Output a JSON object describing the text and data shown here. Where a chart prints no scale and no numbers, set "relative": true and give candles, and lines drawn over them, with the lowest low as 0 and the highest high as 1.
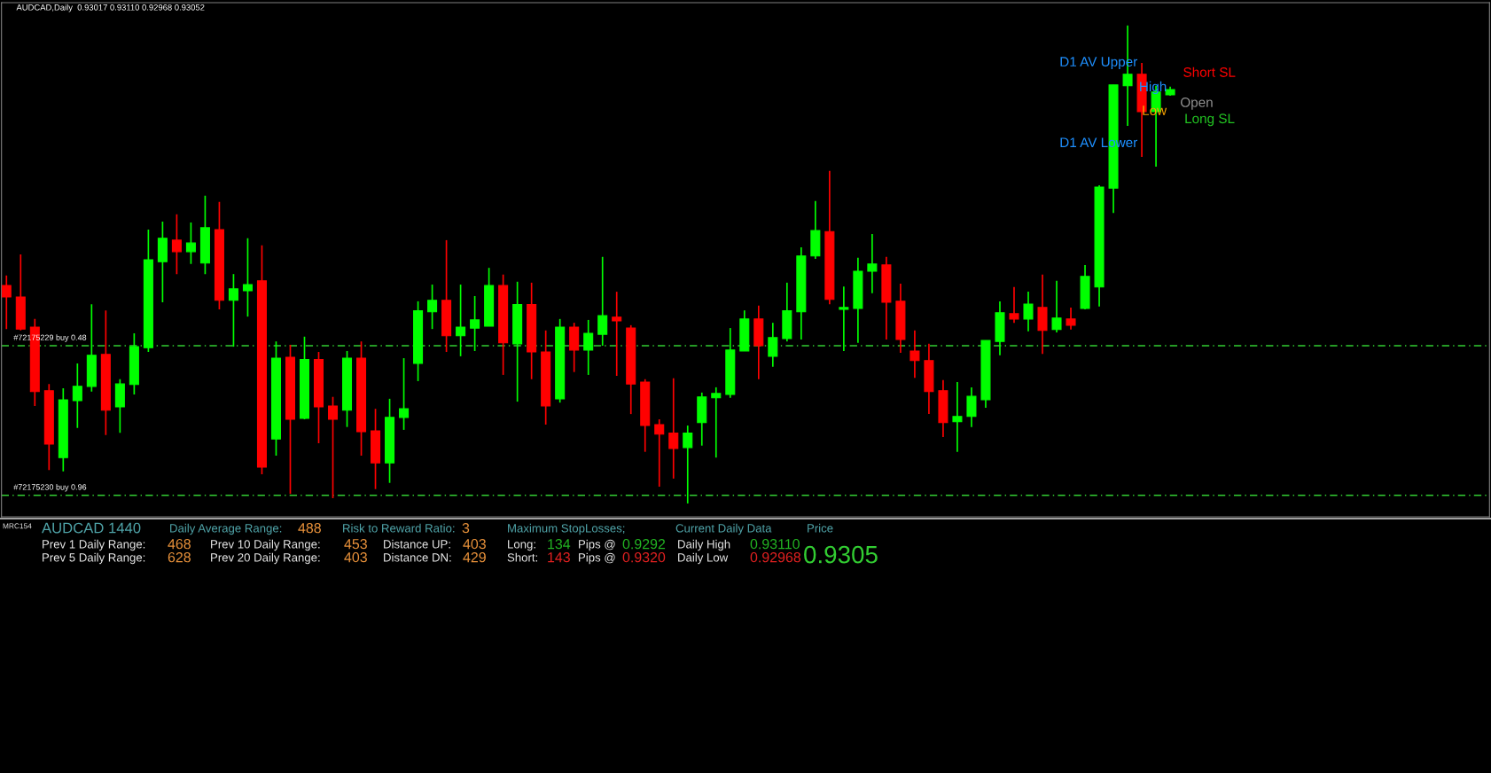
{
  "chart_data": {
    "type": "candlestick",
    "title": "AUDCAD,Daily  0.93017 0.93110 0.92968 0.93052",
    "relative": true,
    "categories": [
      null,
      null,
      null,
      null,
      null,
      null,
      null,
      null,
      null,
      null,
      null,
      null,
      null,
      null,
      null,
      null,
      null,
      null,
      null,
      null,
      null,
      null,
      null,
      null,
      null,
      null,
      null,
      null,
      null,
      null,
      null,
      null,
      null,
      null,
      null,
      null,
      null,
      null,
      null,
      null,
      null,
      null,
      null,
      null,
      null,
      null,
      null,
      null,
      null,
      null,
      null,
      null,
      null,
      null,
      null,
      null,
      null,
      null,
      null,
      null,
      null,
      null,
      null,
      null,
      null,
      null,
      null,
      null,
      null,
      null,
      null,
      null,
      null,
      null,
      null,
      null,
      null,
      null,
      null,
      null,
      null,
      null,
      null
    ],
    "ohlc": [
      [
        0.456,
        0.477,
        0.365,
        0.432
      ],
      [
        0.432,
        0.521,
        0.362,
        0.365
      ],
      [
        0.369,
        0.386,
        0.204,
        0.234
      ],
      [
        0.236,
        0.25,
        0.07,
        0.124
      ],
      [
        0.096,
        0.241,
        0.067,
        0.217
      ],
      [
        0.215,
        0.293,
        0.158,
        0.245
      ],
      [
        0.245,
        0.417,
        0.234,
        0.31
      ],
      [
        0.312,
        0.404,
        0.143,
        0.195
      ],
      [
        0.202,
        0.26,
        0.148,
        0.25
      ],
      [
        0.249,
        0.356,
        0.228,
        0.328
      ],
      [
        0.326,
        0.573,
        0.317,
        0.51
      ],
      [
        0.506,
        0.59,
        0.421,
        0.555
      ],
      [
        0.551,
        0.605,
        0.48,
        0.527
      ],
      [
        0.527,
        0.588,
        0.501,
        0.545
      ],
      [
        0.503,
        0.644,
        0.48,
        0.577
      ],
      [
        0.573,
        0.631,
        0.406,
        0.425
      ],
      [
        0.425,
        0.48,
        0.328,
        0.449
      ],
      [
        0.445,
        0.555,
        0.391,
        0.458
      ],
      [
        0.466,
        0.54,
        0.061,
        0.076
      ],
      [
        0.135,
        0.339,
        0.1,
        0.304
      ],
      [
        0.306,
        0.332,
        0.02,
        0.176
      ],
      [
        0.178,
        0.349,
        0.176,
        0.301
      ],
      [
        0.301,
        0.317,
        0.126,
        0.202
      ],
      [
        0.204,
        0.223,
        0.011,
        0.176
      ],
      [
        0.195,
        0.319,
        0.16,
        0.304
      ],
      [
        0.304,
        0.339,
        0.1,
        0.15
      ],
      [
        0.152,
        0.198,
        0.03,
        0.085
      ],
      [
        0.085,
        0.219,
        0.043,
        0.18
      ],
      [
        0.18,
        0.304,
        0.154,
        0.198
      ],
      [
        0.293,
        0.423,
        0.256,
        0.403
      ],
      [
        0.401,
        0.458,
        0.365,
        0.425
      ],
      [
        0.425,
        0.551,
        0.317,
        0.351
      ],
      [
        0.351,
        0.458,
        0.308,
        0.369
      ],
      [
        0.367,
        0.434,
        0.319,
        0.384
      ],
      [
        0.371,
        0.493,
        0.371,
        0.456
      ],
      [
        0.456,
        0.479,
        0.269,
        0.336
      ],
      [
        0.334,
        0.464,
        0.213,
        0.416
      ],
      [
        0.416,
        0.462,
        0.26,
        0.317
      ],
      [
        0.317,
        0.362,
        0.165,
        0.204
      ],
      [
        0.219,
        0.386,
        0.211,
        0.369
      ],
      [
        0.369,
        0.378,
        0.275,
        0.321
      ],
      [
        0.321,
        0.384,
        0.269,
        0.356
      ],
      [
        0.354,
        0.516,
        0.33,
        0.393
      ],
      [
        0.39,
        0.443,
        0.267,
        0.382
      ],
      [
        0.367,
        0.373,
        0.187,
        0.25
      ],
      [
        0.254,
        0.26,
        0.108,
        0.163
      ],
      [
        0.165,
        0.176,
        0.035,
        0.145
      ],
      [
        0.147,
        0.262,
        0.052,
        0.115
      ],
      [
        0.117,
        0.163,
        0.0,
        0.147
      ],
      [
        0.169,
        0.232,
        0.121,
        0.223
      ],
      [
        0.221,
        0.243,
        0.096,
        0.23
      ],
      [
        0.228,
        0.367,
        0.221,
        0.321
      ],
      [
        0.319,
        0.404,
        0.319,
        0.386
      ],
      [
        0.386,
        0.414,
        0.26,
        0.33
      ],
      [
        0.308,
        0.378,
        0.286,
        0.347
      ],
      [
        0.345,
        0.462,
        0.339,
        0.403
      ],
      [
        0.401,
        0.536,
        0.343,
        0.518
      ],
      [
        0.518,
        0.633,
        0.512,
        0.571
      ],
      [
        0.569,
        0.696,
        0.417,
        0.427
      ],
      [
        0.406,
        0.454,
        0.319,
        0.41
      ],
      [
        0.408,
        0.514,
        0.336,
        0.486
      ],
      [
        0.486,
        0.564,
        0.44,
        0.501
      ],
      [
        0.499,
        0.516,
        0.343,
        0.421
      ],
      [
        0.423,
        0.46,
        0.315,
        0.343
      ],
      [
        0.319,
        0.362,
        0.263,
        0.299
      ],
      [
        0.299,
        0.334,
        0.187,
        0.234
      ],
      [
        0.236,
        0.258,
        0.139,
        0.169
      ],
      [
        0.171,
        0.254,
        0.108,
        0.182
      ],
      [
        0.182,
        0.243,
        0.16,
        0.224
      ],
      [
        0.217,
        0.341,
        0.2,
        0.341
      ],
      [
        0.339,
        0.423,
        0.31,
        0.399
      ],
      [
        0.397,
        0.453,
        0.378,
        0.386
      ],
      [
        0.386,
        0.443,
        0.36,
        0.417
      ],
      [
        0.41,
        0.479,
        0.313,
        0.362
      ],
      [
        0.364,
        0.466,
        0.358,
        0.388
      ],
      [
        0.386,
        0.41,
        0.364,
        0.373
      ],
      [
        0.408,
        0.499,
        0.406,
        0.475
      ],
      [
        0.453,
        0.666,
        0.412,
        0.662
      ],
      [
        0.66,
        0.876,
        0.608,
        0.876
      ],
      [
        0.874,
        1.0,
        0.79,
        0.898
      ],
      [
        0.898,
        0.922,
        0.725,
        0.82
      ],
      [
        0.82,
        0.874,
        0.705,
        0.861
      ],
      [
        0.855,
        0.872,
        0.853,
        0.866
      ]
    ],
    "colors": [
      "#ff0000",
      "#ff0000",
      "#ff0000",
      "#ff0000",
      "#00ff00",
      "#00ff00",
      "#00ff00",
      "#ff0000",
      "#00ff00",
      "#00ff00",
      "#00ff00",
      "#00ff00",
      "#ff0000",
      "#00ff00",
      "#00ff00",
      "#ff0000",
      "#00ff00",
      "#00ff00",
      "#ff0000",
      "#00ff00",
      "#ff0000",
      "#00ff00",
      "#ff0000",
      "#ff0000",
      "#00ff00",
      "#ff0000",
      "#ff0000",
      "#00ff00",
      "#00ff00",
      "#00ff00",
      "#00ff00",
      "#ff0000",
      "#00ff00",
      "#00ff00",
      "#00ff00",
      "#ff0000",
      "#00ff00",
      "#ff0000",
      "#ff0000",
      "#00ff00",
      "#ff0000",
      "#00ff00",
      "#00ff00",
      "#ff0000",
      "#ff0000",
      "#ff0000",
      "#ff0000",
      "#ff0000",
      "#00ff00",
      "#00ff00",
      "#00ff00",
      "#00ff00",
      "#00ff00",
      "#ff0000",
      "#00ff00",
      "#00ff00",
      "#00ff00",
      "#00ff00",
      "#ff0000",
      "#00ff00",
      "#00ff00",
      "#00ff00",
      "#ff0000",
      "#ff0000",
      "#ff0000",
      "#ff0000",
      "#ff0000",
      "#00ff00",
      "#00ff00",
      "#00ff00",
      "#00ff00",
      "#ff0000",
      "#00ff00",
      "#ff0000",
      "#00ff00",
      "#ff0000",
      "#00ff00",
      "#00ff00",
      "#00ff00",
      "#00ff00",
      "#ff0000",
      "#00ff00",
      "#00ff00"
    ],
    "ref_lines": [
      {
        "axis": "y",
        "value": 0.33,
        "label": "#72175229 buy 0.48",
        "color": "#32cd32",
        "line_style": "dashed"
      },
      {
        "axis": "y",
        "value": 0.017,
        "label": "#72175230 buy 0.96",
        "color": "#32cd32",
        "line_style": "dashed"
      }
    ],
    "annotations": [
      "D1 AV Upper",
      "D1 AV Lower",
      "High",
      "Low",
      "Short SL",
      "Open",
      "Long SL",
      "MRC154",
      "AUDCAD 1440",
      "Daily Average Range:",
      "488",
      "Risk to Reward Ratio:",
      "3",
      "Maximum StopLosses;",
      "Current Daily Data",
      "Price",
      "Prev 1 Daily Range:",
      "468",
      "Prev 10 Daily Range:",
      "453",
      "Distance UP:",
      "403",
      "Long:",
      "134",
      "Pips @",
      "0.9292",
      "Daily High",
      "0.93110",
      "Prev 5 Daily Range:",
      "628",
      "Prev 20 Daily Range:",
      "403",
      "Distance DN:",
      "429",
      "Short:",
      "143",
      "Pips @",
      "0.9320",
      "Daily Low",
      "0.92968",
      "0.9305"
    ]
  }
}
